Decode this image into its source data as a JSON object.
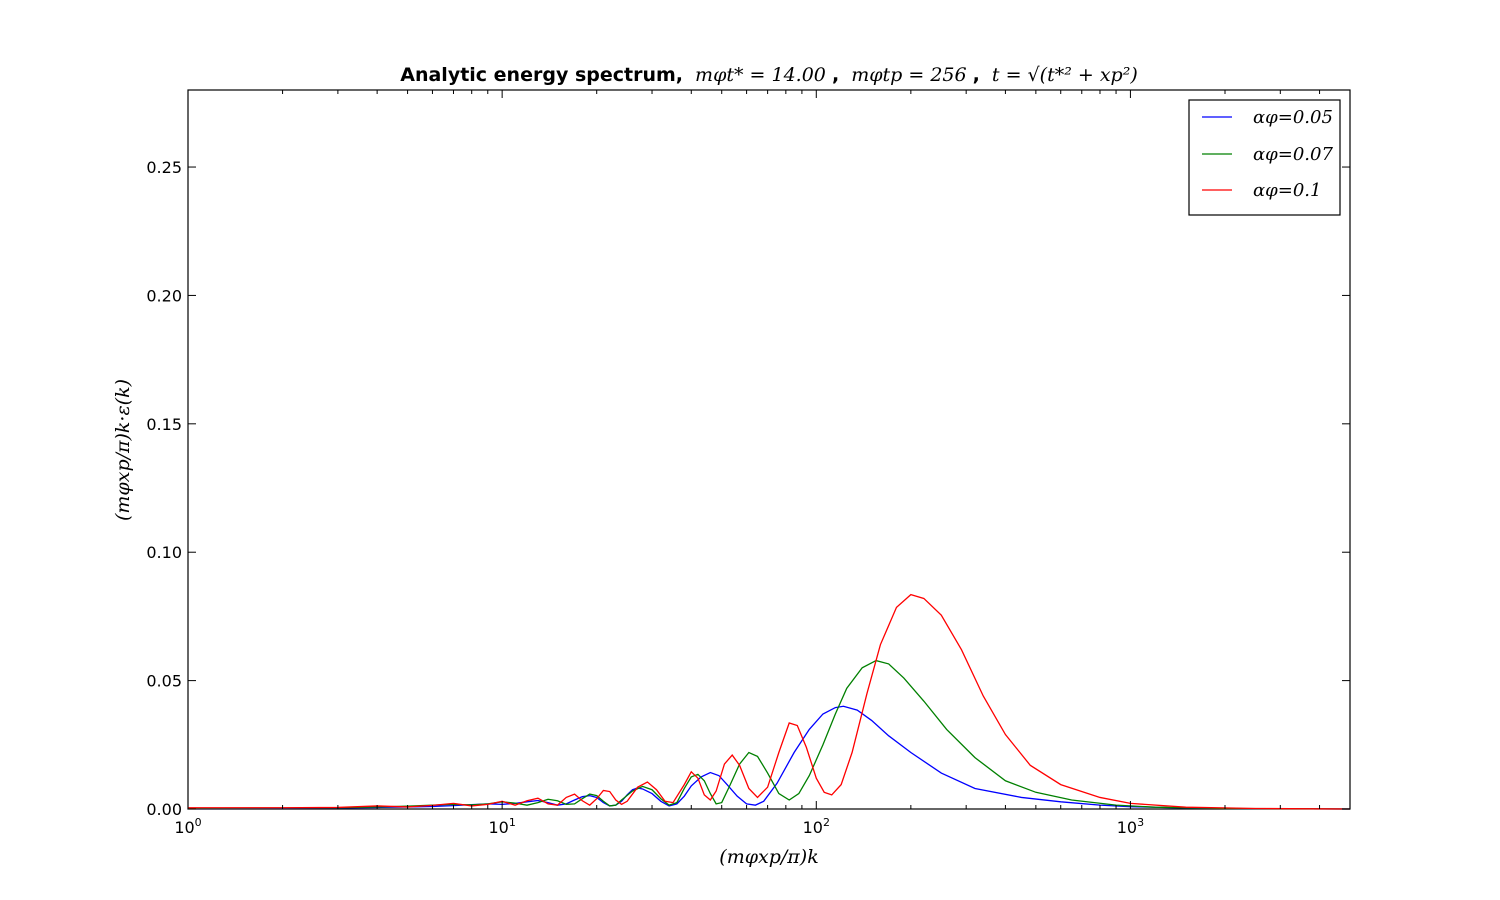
{
  "chart_data": {
    "type": "line",
    "title": {
      "bold_part": "Analytic energy spectrum,",
      "math_part_1": "mφt* = 14.00",
      "sep_1": ",",
      "math_part_2": "mφtp = 256",
      "sep_2": ",",
      "math_part_3": "t = √(t*² + xp²)"
    },
    "xlabel": "(mφxp/π)k",
    "ylabel": "(mφxp/π)k·ε(k)",
    "xscale": "log",
    "xlim": [
      1,
      5000
    ],
    "ylim": [
      0,
      0.28
    ],
    "x_ticks": [
      {
        "value": 1,
        "base": "10",
        "exp": "0"
      },
      {
        "value": 10,
        "base": "10",
        "exp": "1"
      },
      {
        "value": 100,
        "base": "10",
        "exp": "2"
      },
      {
        "value": 1000,
        "base": "10",
        "exp": "3"
      }
    ],
    "y_ticks": [
      "0.00",
      "0.05",
      "0.10",
      "0.15",
      "0.20",
      "0.25"
    ],
    "legend_position": "top-right",
    "grid": false,
    "series": [
      {
        "name": "αφ=0.05",
        "color": "#0000ff",
        "points": [
          [
            1,
            0.0002
          ],
          [
            2,
            0.0003
          ],
          [
            3,
            0.0004
          ],
          [
            4,
            0.0006
          ],
          [
            5,
            0.0008
          ],
          [
            6,
            0.001
          ],
          [
            7,
            0.0013
          ],
          [
            8,
            0.0017
          ],
          [
            9,
            0.002
          ],
          [
            10,
            0.0018
          ],
          [
            11,
            0.0022
          ],
          [
            12,
            0.0028
          ],
          [
            13,
            0.0033
          ],
          [
            14,
            0.0025
          ],
          [
            15,
            0.0015
          ],
          [
            16,
            0.002
          ],
          [
            17,
            0.0035
          ],
          [
            18,
            0.0048
          ],
          [
            19,
            0.0052
          ],
          [
            20,
            0.0045
          ],
          [
            21,
            0.0025
          ],
          [
            22,
            0.0012
          ],
          [
            23,
            0.0015
          ],
          [
            24,
            0.003
          ],
          [
            25,
            0.0055
          ],
          [
            26,
            0.0075
          ],
          [
            27,
            0.0082
          ],
          [
            28,
            0.0078
          ],
          [
            30,
            0.006
          ],
          [
            32,
            0.003
          ],
          [
            34,
            0.0012
          ],
          [
            36,
            0.002
          ],
          [
            38,
            0.005
          ],
          [
            40,
            0.009
          ],
          [
            43,
            0.0125
          ],
          [
            46,
            0.0142
          ],
          [
            49,
            0.013
          ],
          [
            52,
            0.0095
          ],
          [
            56,
            0.005
          ],
          [
            60,
            0.002
          ],
          [
            64,
            0.0015
          ],
          [
            68,
            0.003
          ],
          [
            75,
            0.01
          ],
          [
            85,
            0.022
          ],
          [
            95,
            0.031
          ],
          [
            105,
            0.037
          ],
          [
            115,
            0.0395
          ],
          [
            122,
            0.04
          ],
          [
            135,
            0.0385
          ],
          [
            150,
            0.0345
          ],
          [
            170,
            0.0285
          ],
          [
            200,
            0.022
          ],
          [
            250,
            0.014
          ],
          [
            320,
            0.008
          ],
          [
            450,
            0.0045
          ],
          [
            600,
            0.0028
          ],
          [
            800,
            0.0015
          ],
          [
            1000,
            0.0009
          ],
          [
            1500,
            0.0004
          ],
          [
            2500,
            0.0001
          ],
          [
            5000,
            0.0
          ]
        ]
      },
      {
        "name": "αφ=0.07",
        "color": "#008000",
        "points": [
          [
            1,
            0.0003
          ],
          [
            2,
            0.0004
          ],
          [
            3,
            0.0005
          ],
          [
            4,
            0.0008
          ],
          [
            5,
            0.0011
          ],
          [
            6,
            0.0015
          ],
          [
            7,
            0.0018
          ],
          [
            8,
            0.0016
          ],
          [
            9,
            0.002
          ],
          [
            10,
            0.0028
          ],
          [
            11,
            0.0023
          ],
          [
            12,
            0.0015
          ],
          [
            13,
            0.0025
          ],
          [
            14,
            0.0038
          ],
          [
            15,
            0.0032
          ],
          [
            16,
            0.0018
          ],
          [
            17,
            0.002
          ],
          [
            18,
            0.004
          ],
          [
            19,
            0.0058
          ],
          [
            20,
            0.0052
          ],
          [
            21,
            0.003
          ],
          [
            22,
            0.0012
          ],
          [
            23,
            0.0015
          ],
          [
            24,
            0.0035
          ],
          [
            26,
            0.007
          ],
          [
            28,
            0.0088
          ],
          [
            30,
            0.0075
          ],
          [
            32,
            0.004
          ],
          [
            34,
            0.0015
          ],
          [
            36,
            0.0025
          ],
          [
            38,
            0.008
          ],
          [
            40,
            0.0125
          ],
          [
            42,
            0.0135
          ],
          [
            44,
            0.011
          ],
          [
            46,
            0.006
          ],
          [
            48,
            0.002
          ],
          [
            50,
            0.0025
          ],
          [
            53,
            0.009
          ],
          [
            57,
            0.0175
          ],
          [
            61,
            0.022
          ],
          [
            65,
            0.0205
          ],
          [
            70,
            0.014
          ],
          [
            76,
            0.006
          ],
          [
            82,
            0.0035
          ],
          [
            88,
            0.006
          ],
          [
            95,
            0.013
          ],
          [
            105,
            0.025
          ],
          [
            115,
            0.037
          ],
          [
            125,
            0.047
          ],
          [
            140,
            0.055
          ],
          [
            155,
            0.0578
          ],
          [
            170,
            0.0565
          ],
          [
            190,
            0.051
          ],
          [
            220,
            0.042
          ],
          [
            260,
            0.031
          ],
          [
            320,
            0.02
          ],
          [
            400,
            0.011
          ],
          [
            500,
            0.0065
          ],
          [
            650,
            0.0035
          ],
          [
            900,
            0.0015
          ],
          [
            1200,
            0.0007
          ],
          [
            2000,
            0.0002
          ],
          [
            5000,
            0.0
          ]
        ]
      },
      {
        "name": "αφ=0.1",
        "color": "#ff0000",
        "points": [
          [
            1,
            0.0005
          ],
          [
            2,
            0.0005
          ],
          [
            3,
            0.0006
          ],
          [
            4,
            0.0012
          ],
          [
            5,
            0.0008
          ],
          [
            6,
            0.0014
          ],
          [
            7,
            0.0022
          ],
          [
            8,
            0.0012
          ],
          [
            9,
            0.0018
          ],
          [
            10,
            0.003
          ],
          [
            11,
            0.0015
          ],
          [
            12,
            0.0032
          ],
          [
            13,
            0.0042
          ],
          [
            14,
            0.002
          ],
          [
            15,
            0.0015
          ],
          [
            16,
            0.0045
          ],
          [
            17,
            0.0058
          ],
          [
            18,
            0.0032
          ],
          [
            19,
            0.0015
          ],
          [
            20,
            0.004
          ],
          [
            21,
            0.0072
          ],
          [
            22,
            0.0068
          ],
          [
            23,
            0.0035
          ],
          [
            24,
            0.0018
          ],
          [
            25,
            0.003
          ],
          [
            27,
            0.0085
          ],
          [
            29,
            0.0105
          ],
          [
            31,
            0.0075
          ],
          [
            33,
            0.003
          ],
          [
            35,
            0.0025
          ],
          [
            38,
            0.0095
          ],
          [
            40,
            0.0145
          ],
          [
            42,
            0.012
          ],
          [
            44,
            0.0055
          ],
          [
            46,
            0.0035
          ],
          [
            48,
            0.007
          ],
          [
            51,
            0.0175
          ],
          [
            54,
            0.021
          ],
          [
            57,
            0.017
          ],
          [
            61,
            0.008
          ],
          [
            65,
            0.0045
          ],
          [
            70,
            0.0085
          ],
          [
            76,
            0.022
          ],
          [
            82,
            0.0335
          ],
          [
            87,
            0.0325
          ],
          [
            93,
            0.024
          ],
          [
            100,
            0.012
          ],
          [
            106,
            0.0065
          ],
          [
            112,
            0.0055
          ],
          [
            120,
            0.0095
          ],
          [
            130,
            0.022
          ],
          [
            145,
            0.045
          ],
          [
            160,
            0.064
          ],
          [
            180,
            0.0785
          ],
          [
            200,
            0.0835
          ],
          [
            220,
            0.082
          ],
          [
            250,
            0.0755
          ],
          [
            290,
            0.062
          ],
          [
            340,
            0.044
          ],
          [
            400,
            0.029
          ],
          [
            480,
            0.017
          ],
          [
            600,
            0.0095
          ],
          [
            800,
            0.0045
          ],
          [
            1000,
            0.0022
          ],
          [
            1500,
            0.0007
          ],
          [
            2500,
            0.0002
          ],
          [
            5000,
            0.0
          ]
        ]
      }
    ]
  }
}
